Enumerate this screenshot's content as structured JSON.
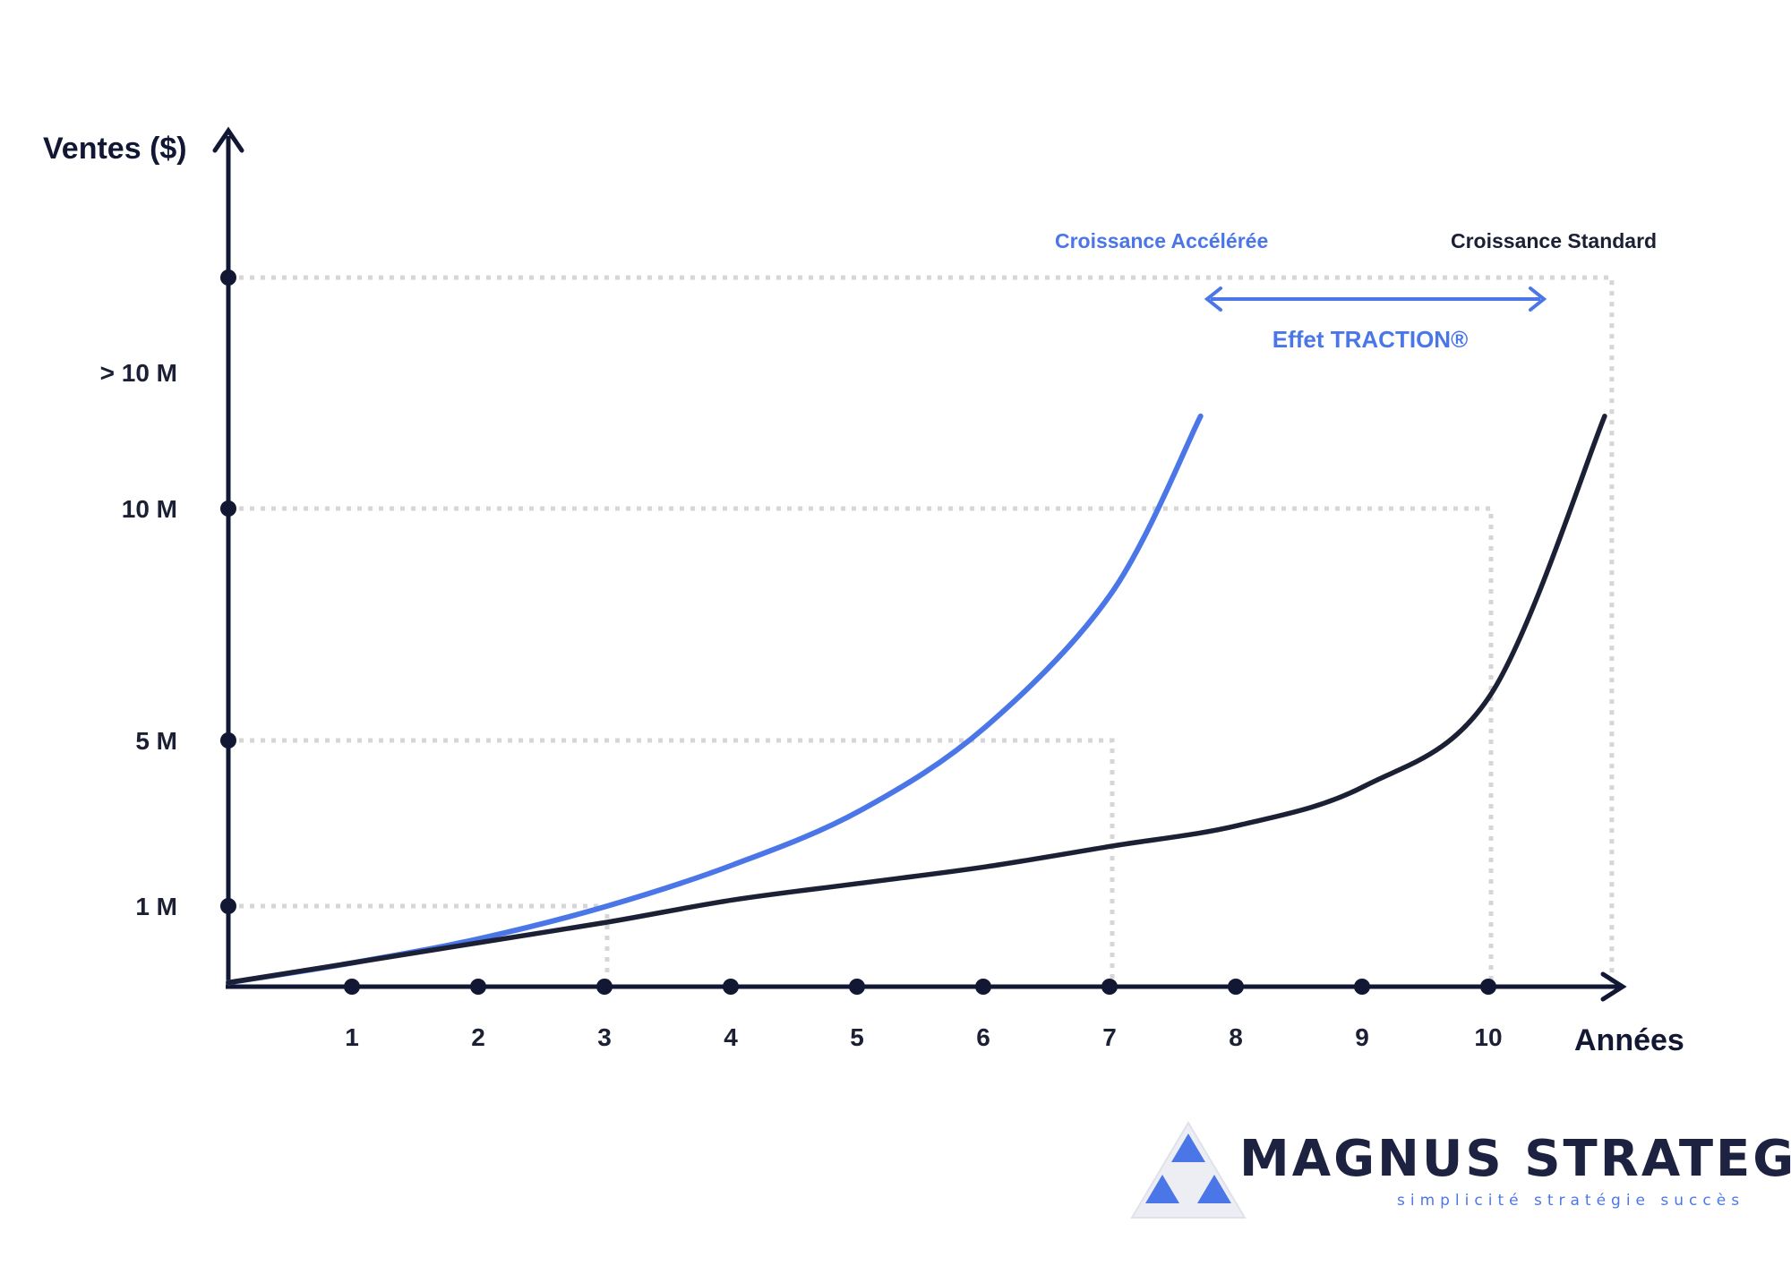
{
  "chart_data": {
    "type": "line",
    "xlabel": "Années",
    "ylabel": "Ventes ($)",
    "x_ticks": [
      "1",
      "2",
      "3",
      "4",
      "5",
      "6",
      "7",
      "8",
      "9",
      "10"
    ],
    "y_tick_labels": [
      "1 M",
      "5 M",
      "10 M",
      "> 10 M"
    ],
    "series": [
      {
        "name": "Croissance Accélérée",
        "color": "#4a76e8",
        "x": [
          0,
          1,
          2,
          3,
          4,
          5,
          6,
          7,
          7.7
        ],
        "y": [
          0.05,
          0.3,
          0.6,
          1.0,
          2.0,
          3.3,
          5.3,
          8.2,
          10.8
        ]
      },
      {
        "name": "Croissance Standard",
        "color": "#1b2035",
        "x": [
          0,
          1,
          2,
          3,
          4,
          5,
          6,
          7,
          8,
          9,
          10,
          10.9
        ],
        "y": [
          0.05,
          0.3,
          0.55,
          0.8,
          1.15,
          1.55,
          1.95,
          2.45,
          2.95,
          3.9,
          6.0,
          10.8
        ]
      }
    ],
    "reference_points": [
      {
        "x": 3,
        "y_label": "1 M"
      },
      {
        "x": 7,
        "y_label": "5 M"
      },
      {
        "x": 10,
        "y_label": "10 M"
      }
    ],
    "annotation": {
      "text": "Effet TRACTION®",
      "color": "#4a76e8",
      "type": "double-arrow"
    },
    "grid": false,
    "legend": "inline labels at top"
  },
  "brand": {
    "name": "MAGNUS STRATEGY",
    "tagline": "simplicité stratégie succès",
    "colors": {
      "navy": "#1d2240",
      "blue": "#4a76e8",
      "light_blue": "#eceef4"
    }
  }
}
